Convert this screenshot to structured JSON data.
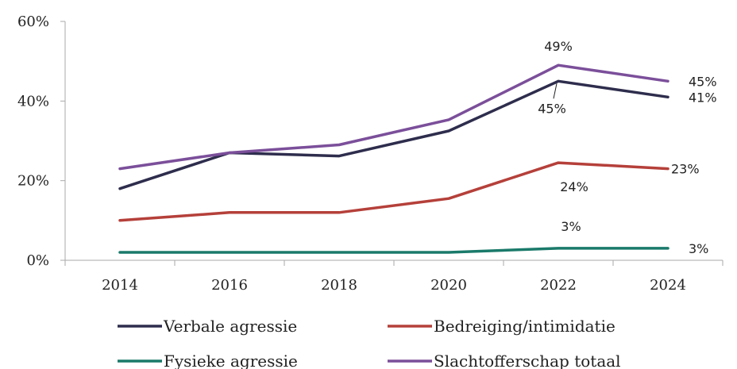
{
  "chart_data": {
    "type": "line",
    "x": [
      "2014",
      "2016",
      "2018",
      "2020",
      "2022",
      "2024"
    ],
    "ylim": [
      0,
      60
    ],
    "y_ticks": [
      "0%",
      "20%",
      "40%",
      "60%"
    ],
    "grid": false,
    "legend_position": "bottom",
    "series": [
      {
        "name": "Verbale agressie",
        "color": "#2e2d4d",
        "values": [
          18,
          27,
          26.2,
          32.5,
          45,
          41
        ]
      },
      {
        "name": "Bedreiging/intimidatie",
        "color": "#b5403a",
        "values": [
          10,
          12,
          12,
          15.5,
          24.5,
          23
        ]
      },
      {
        "name": "Fysieke agressie",
        "color": "#1a7a6a",
        "values": [
          2,
          2,
          2,
          2,
          3,
          3
        ]
      },
      {
        "name": "Slachtofferschap totaal",
        "color": "#7b4f9a",
        "values": [
          23,
          27,
          29,
          35.3,
          49,
          45
        ]
      }
    ],
    "data_labels": [
      {
        "text": "49%",
        "series": 3,
        "index": 4
      },
      {
        "text": "45%",
        "series": 3,
        "index": 5
      },
      {
        "text": "45%",
        "series": 0,
        "index": 4
      },
      {
        "text": "41%",
        "series": 0,
        "index": 5
      },
      {
        "text": "23%",
        "series": 1,
        "index": 5
      },
      {
        "text": "24%",
        "series": 1,
        "index": 4
      },
      {
        "text": "3%",
        "series": 2,
        "index": 4
      },
      {
        "text": "3%",
        "series": 2,
        "index": 5
      }
    ]
  }
}
